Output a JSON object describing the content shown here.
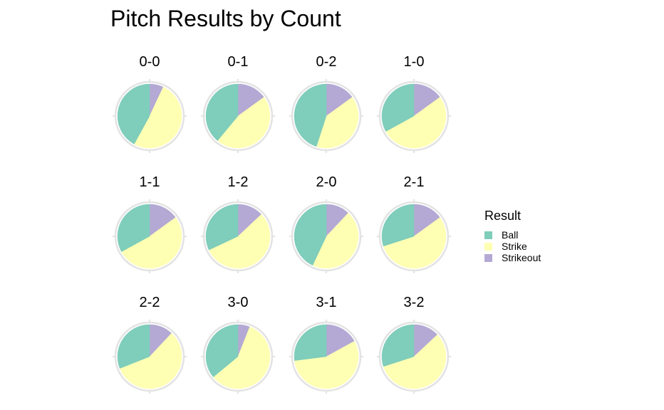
{
  "chart_data": {
    "type": "pie",
    "title": "Pitch Results by Count",
    "legend": {
      "title": "Result",
      "position": "right",
      "entries": [
        {
          "name": "Ball",
          "color": "#7fcdbb"
        },
        {
          "name": "Strike",
          "color": "#ffffb3"
        },
        {
          "name": "Strikeout",
          "color": "#b3a9d4"
        }
      ]
    },
    "categories": [
      "Strikeout",
      "Strike",
      "Ball"
    ],
    "facets": [
      {
        "label": "0-0",
        "values": [
          0.07,
          0.51,
          0.42
        ]
      },
      {
        "label": "0-1",
        "values": [
          0.15,
          0.46,
          0.39
        ]
      },
      {
        "label": "0-2",
        "values": [
          0.15,
          0.4,
          0.45
        ]
      },
      {
        "label": "1-0",
        "values": [
          0.15,
          0.52,
          0.33
        ]
      },
      {
        "label": "1-1",
        "values": [
          0.15,
          0.52,
          0.33
        ]
      },
      {
        "label": "1-2",
        "values": [
          0.13,
          0.55,
          0.32
        ]
      },
      {
        "label": "2-0",
        "values": [
          0.12,
          0.45,
          0.43
        ]
      },
      {
        "label": "2-1",
        "values": [
          0.15,
          0.55,
          0.3
        ]
      },
      {
        "label": "2-2",
        "values": [
          0.12,
          0.57,
          0.31
        ]
      },
      {
        "label": "3-0",
        "values": [
          0.06,
          0.58,
          0.36
        ]
      },
      {
        "label": "3-1",
        "values": [
          0.17,
          0.56,
          0.27
        ]
      },
      {
        "label": "3-2",
        "values": [
          0.13,
          0.57,
          0.3
        ]
      }
    ]
  }
}
